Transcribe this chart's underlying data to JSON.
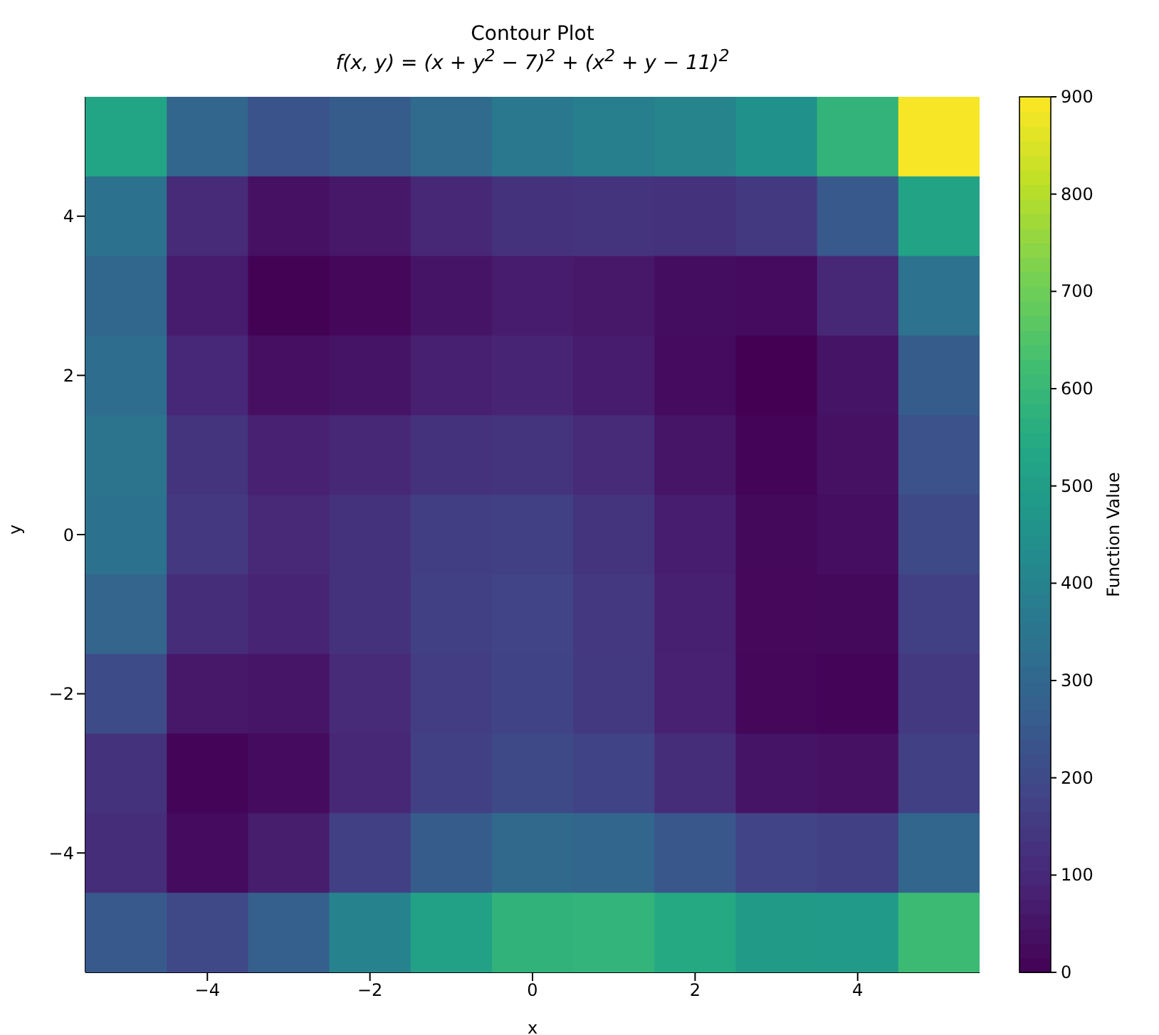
{
  "chart_data": {
    "type": "heatmap",
    "title": "Contour Plot",
    "subtitle": "f(x, y) = (x + y$^{2}$ − 7)$^{2}$ + (x$^{2}$ + y − 11)$^{2}$",
    "xlabel": "x",
    "ylabel": "y",
    "clabel": "Function Value",
    "categories": [
      null,
      "−4",
      null,
      "−2",
      null,
      "0",
      null,
      "2",
      null,
      "4",
      null
    ],
    "y_categories": [
      null,
      "4",
      null,
      "2",
      null,
      "0",
      null,
      "−2",
      null,
      "−4",
      null
    ],
    "clim": [
      0,
      900
    ],
    "cticks": [
      0,
      100,
      200,
      300,
      400,
      500,
      600,
      700,
      800,
      900
    ],
    "cells": [
      [
        530,
        296,
        234,
        260,
        314,
        360,
        386,
        404,
        450,
        584,
        890
      ],
      [
        340,
        106,
        40,
        58,
        100,
        130,
        136,
        130,
        148,
        250,
        520
      ],
      [
        298,
        68,
        2,
        16,
        50,
        68,
        58,
        32,
        26,
        100,
        338
      ],
      [
        320,
        98,
        36,
        50,
        80,
        90,
        68,
        26,
        0,
        50,
        260
      ],
      [
        346,
        136,
        82,
        100,
        130,
        136,
        106,
        52,
        10,
        40,
        226
      ],
      [
        340,
        146,
        104,
        130,
        164,
        170,
        136,
        74,
        20,
        34,
        200
      ],
      [
        290,
        116,
        90,
        128,
        170,
        180,
        146,
        80,
        18,
        20,
        170
      ],
      [
        208,
        58,
        52,
        106,
        160,
        178,
        148,
        82,
        16,
        10,
        148
      ],
      [
        130,
        8,
        26,
        100,
        170,
        200,
        178,
        116,
        50,
        40,
        170
      ],
      [
        116,
        26,
        72,
        170,
        260,
        306,
        296,
        242,
        180,
        170,
        296
      ],
      [
        250,
        196,
        274,
        400,
        514,
        580,
        586,
        544,
        490,
        484,
        610
      ]
    ]
  }
}
